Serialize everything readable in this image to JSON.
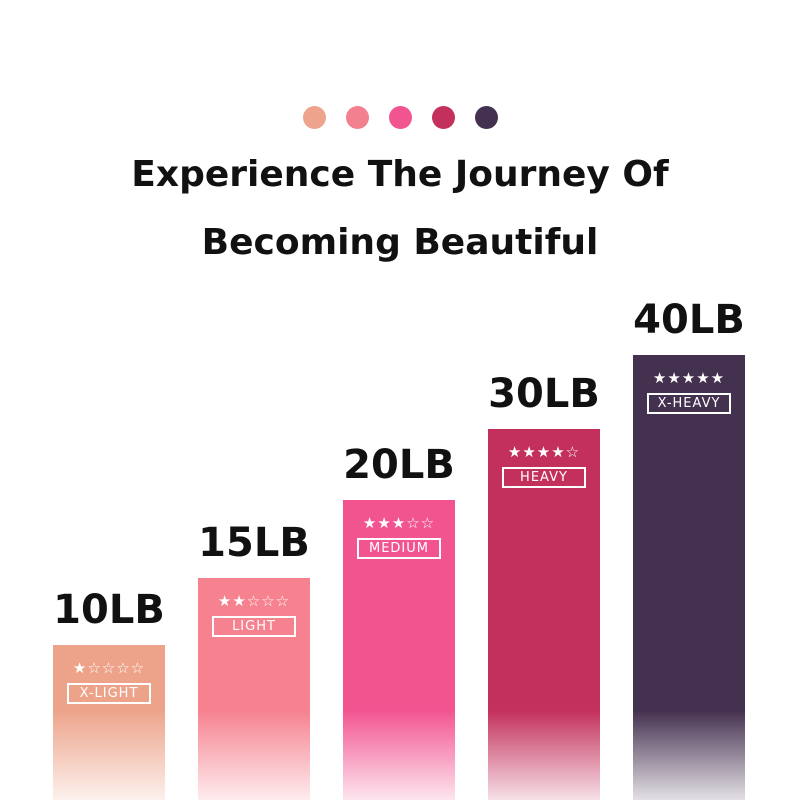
{
  "dots": [
    "#eea48c",
    "#f3808e",
    "#f25490",
    "#c3305b",
    "#44304f"
  ],
  "title_line1": "Experience The Journey Of",
  "title_line2": "Becoming Beautiful",
  "bands": [
    {
      "weight": "10LB",
      "stars": "★☆☆☆☆",
      "level": "X-LIGHT",
      "rating": 1,
      "color": "#eda38a"
    },
    {
      "weight": "15LB",
      "stars": "★★☆☆☆",
      "level": "LIGHT",
      "rating": 2,
      "color": "#f6818f"
    },
    {
      "weight": "20LB",
      "stars": "★★★☆☆",
      "level": "MEDIUM",
      "rating": 3,
      "color": "#f25490"
    },
    {
      "weight": "30LB",
      "stars": "★★★★☆",
      "level": "HEAVY",
      "rating": 4,
      "color": "#c3305b"
    },
    {
      "weight": "40LB",
      "stars": "★★★★★",
      "level": "X-HEAVY",
      "rating": 5,
      "color": "#44304f"
    }
  ]
}
